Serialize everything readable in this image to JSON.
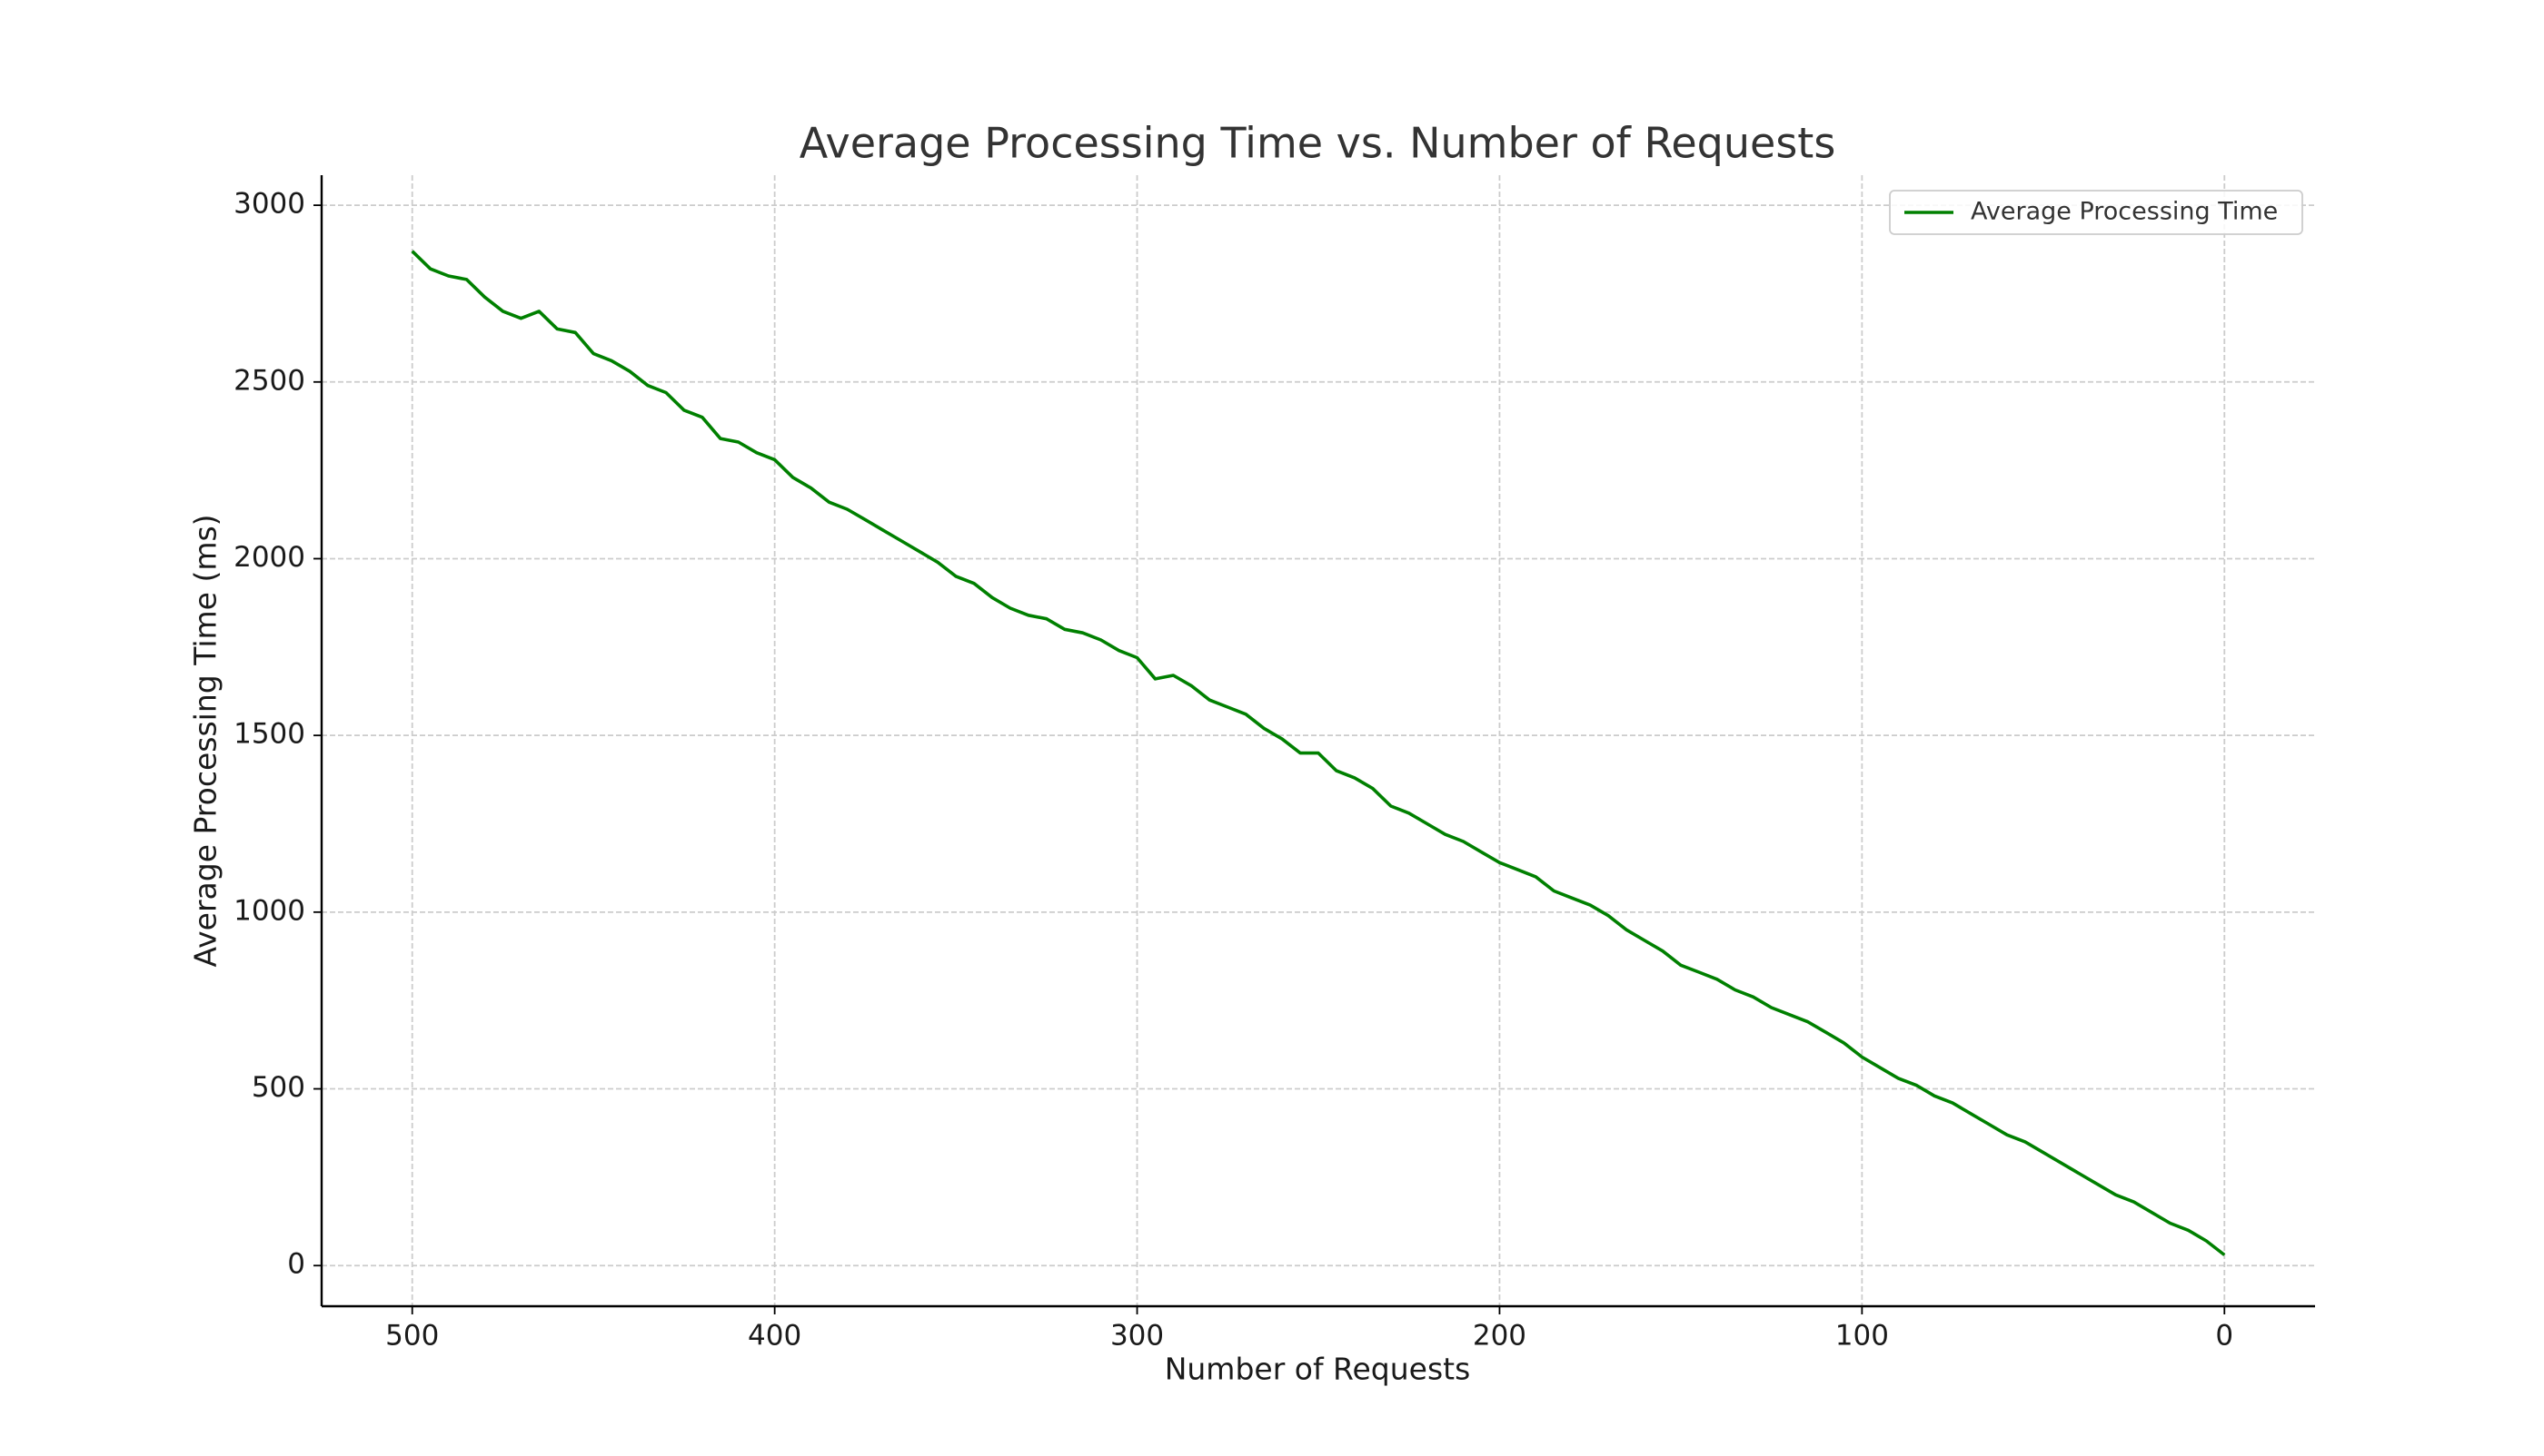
{
  "chart_data": {
    "type": "line",
    "title": "Average Processing Time vs. Number of Requests",
    "x_label": "Number of Requests",
    "y_label": "Average Processing Time (ms)",
    "xlim": [
      525,
      -25
    ],
    "ylim": [
      -115,
      3085
    ],
    "xticks": [
      500,
      400,
      300,
      200,
      100,
      0
    ],
    "yticks": [
      0,
      500,
      1000,
      1500,
      2000,
      2500,
      3000
    ],
    "grid": true,
    "legend": "upper right",
    "x": [
      500,
      495,
      490,
      485,
      480,
      475,
      470,
      465,
      460,
      455,
      450,
      445,
      440,
      435,
      430,
      425,
      420,
      415,
      410,
      405,
      400,
      395,
      390,
      385,
      380,
      375,
      370,
      365,
      360,
      355,
      350,
      345,
      340,
      335,
      330,
      325,
      320,
      315,
      310,
      305,
      300,
      295,
      290,
      285,
      280,
      275,
      270,
      265,
      260,
      255,
      250,
      245,
      240,
      235,
      230,
      225,
      220,
      215,
      210,
      205,
      200,
      195,
      190,
      185,
      180,
      175,
      170,
      165,
      160,
      155,
      150,
      145,
      140,
      135,
      130,
      125,
      120,
      115,
      110,
      105,
      100,
      95,
      90,
      85,
      80,
      75,
      70,
      65,
      60,
      55,
      50,
      45,
      40,
      35,
      30,
      25,
      20,
      15,
      10,
      5,
      0
    ],
    "series": [
      {
        "name": "Average Processing Time",
        "color": "#008000",
        "values": [
          2870,
          2820,
          2800,
          2790,
          2740,
          2700,
          2680,
          2700,
          2650,
          2640,
          2580,
          2560,
          2530,
          2490,
          2470,
          2420,
          2400,
          2340,
          2330,
          2300,
          2280,
          2230,
          2200,
          2160,
          2140,
          2110,
          2080,
          2050,
          2020,
          1990,
          1950,
          1930,
          1890,
          1860,
          1840,
          1830,
          1800,
          1790,
          1770,
          1740,
          1720,
          1660,
          1670,
          1640,
          1600,
          1580,
          1560,
          1520,
          1490,
          1450,
          1450,
          1400,
          1380,
          1350,
          1300,
          1280,
          1250,
          1220,
          1200,
          1170,
          1140,
          1120,
          1100,
          1060,
          1040,
          1020,
          990,
          950,
          920,
          890,
          850,
          830,
          810,
          780,
          760,
          730,
          710,
          690,
          660,
          630,
          590,
          560,
          530,
          510,
          480,
          460,
          430,
          400,
          370,
          350,
          320,
          290,
          260,
          230,
          200,
          180,
          150,
          120,
          100,
          70,
          30
        ]
      }
    ]
  }
}
